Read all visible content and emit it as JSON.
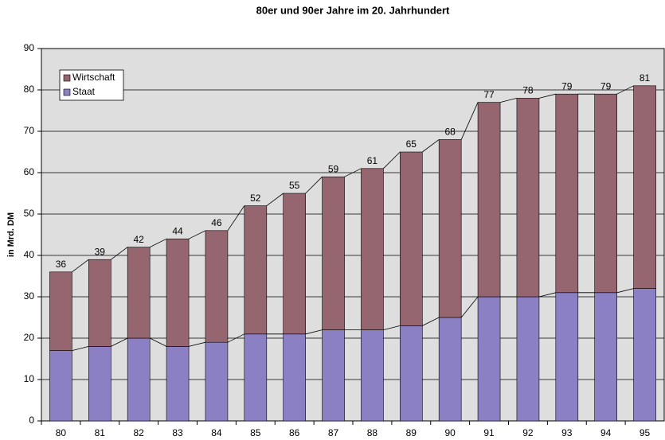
{
  "chart_data": {
    "type": "stacked-bar",
    "title": "80er und 90er Jahre im 20. Jahrhundert",
    "y_label": "in Mrd. DM",
    "categories": [
      "80",
      "81",
      "82",
      "83",
      "84",
      "85",
      "86",
      "87",
      "88",
      "89",
      "90",
      "91",
      "92",
      "93",
      "94",
      "95"
    ],
    "series": [
      {
        "name": "Staat",
        "color": "#8b80c3",
        "values": [
          17,
          18,
          20,
          18,
          19,
          21,
          21,
          22,
          22,
          23,
          25,
          30,
          30,
          31,
          31,
          32
        ]
      },
      {
        "name": "Wirtschaft",
        "color": "#956670",
        "values": [
          19,
          21,
          22,
          26,
          27,
          31,
          34,
          37,
          39,
          42,
          43,
          47,
          48,
          48,
          48,
          49
        ]
      }
    ],
    "totals": [
      36,
      39,
      42,
      44,
      46,
      52,
      55,
      59,
      61,
      65,
      68,
      77,
      78,
      79,
      79,
      81
    ],
    "ylim": [
      0,
      90
    ],
    "yticks": [
      0,
      10,
      20,
      30,
      40,
      50,
      60,
      70,
      80,
      90
    ],
    "grid": true,
    "legend": "top-left"
  }
}
